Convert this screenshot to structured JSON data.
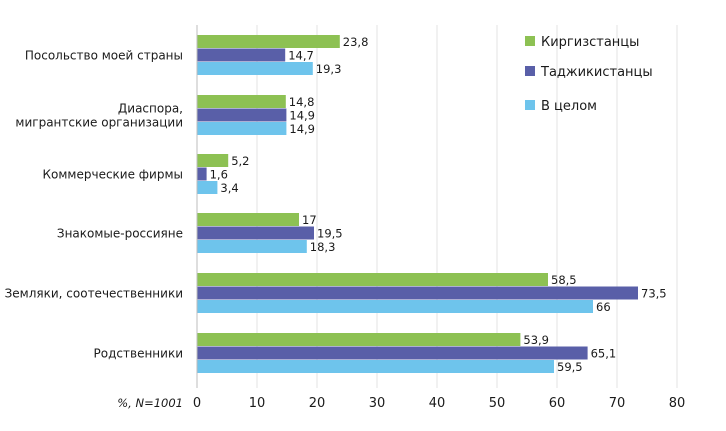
{
  "chart_data": {
    "type": "bar",
    "orientation": "horizontal",
    "categories": [
      [
        "Посольство моей страны"
      ],
      [
        "Диаспора,",
        "мигрантские организации"
      ],
      [
        "Коммерческие фирмы"
      ],
      [
        "Знакомые-россияне"
      ],
      [
        "Земляки, соотечественники"
      ],
      [
        "Родственники"
      ]
    ],
    "series": [
      {
        "name": "Киргизстанцы",
        "color": "#8dc153",
        "values": [
          23.8,
          14.8,
          5.2,
          17,
          58.5,
          53.9
        ],
        "labels": [
          "23,8",
          "14,8",
          "5,2",
          "17",
          "58,5",
          "53,9"
        ]
      },
      {
        "name": "Таджикистанцы",
        "color": "#595fa8",
        "values": [
          14.7,
          14.9,
          1.6,
          19.5,
          73.5,
          65.1
        ],
        "labels": [
          "14,7",
          "14,9",
          "1,6",
          "19,5",
          "73,5",
          "65,1"
        ]
      },
      {
        "name": "В целом",
        "color": "#6ec4ec",
        "values": [
          19.3,
          14.9,
          3.4,
          18.3,
          66,
          59.5
        ],
        "labels": [
          "19,3",
          "14,9",
          "3,4",
          "18,3",
          "66",
          "59,5"
        ]
      }
    ],
    "xlim": [
      0,
      80
    ],
    "xticks": [
      0,
      10,
      20,
      30,
      40,
      50,
      60,
      70,
      80
    ],
    "xlabel": "%, N=1001",
    "grid": "vertical",
    "legend": "top-right"
  }
}
